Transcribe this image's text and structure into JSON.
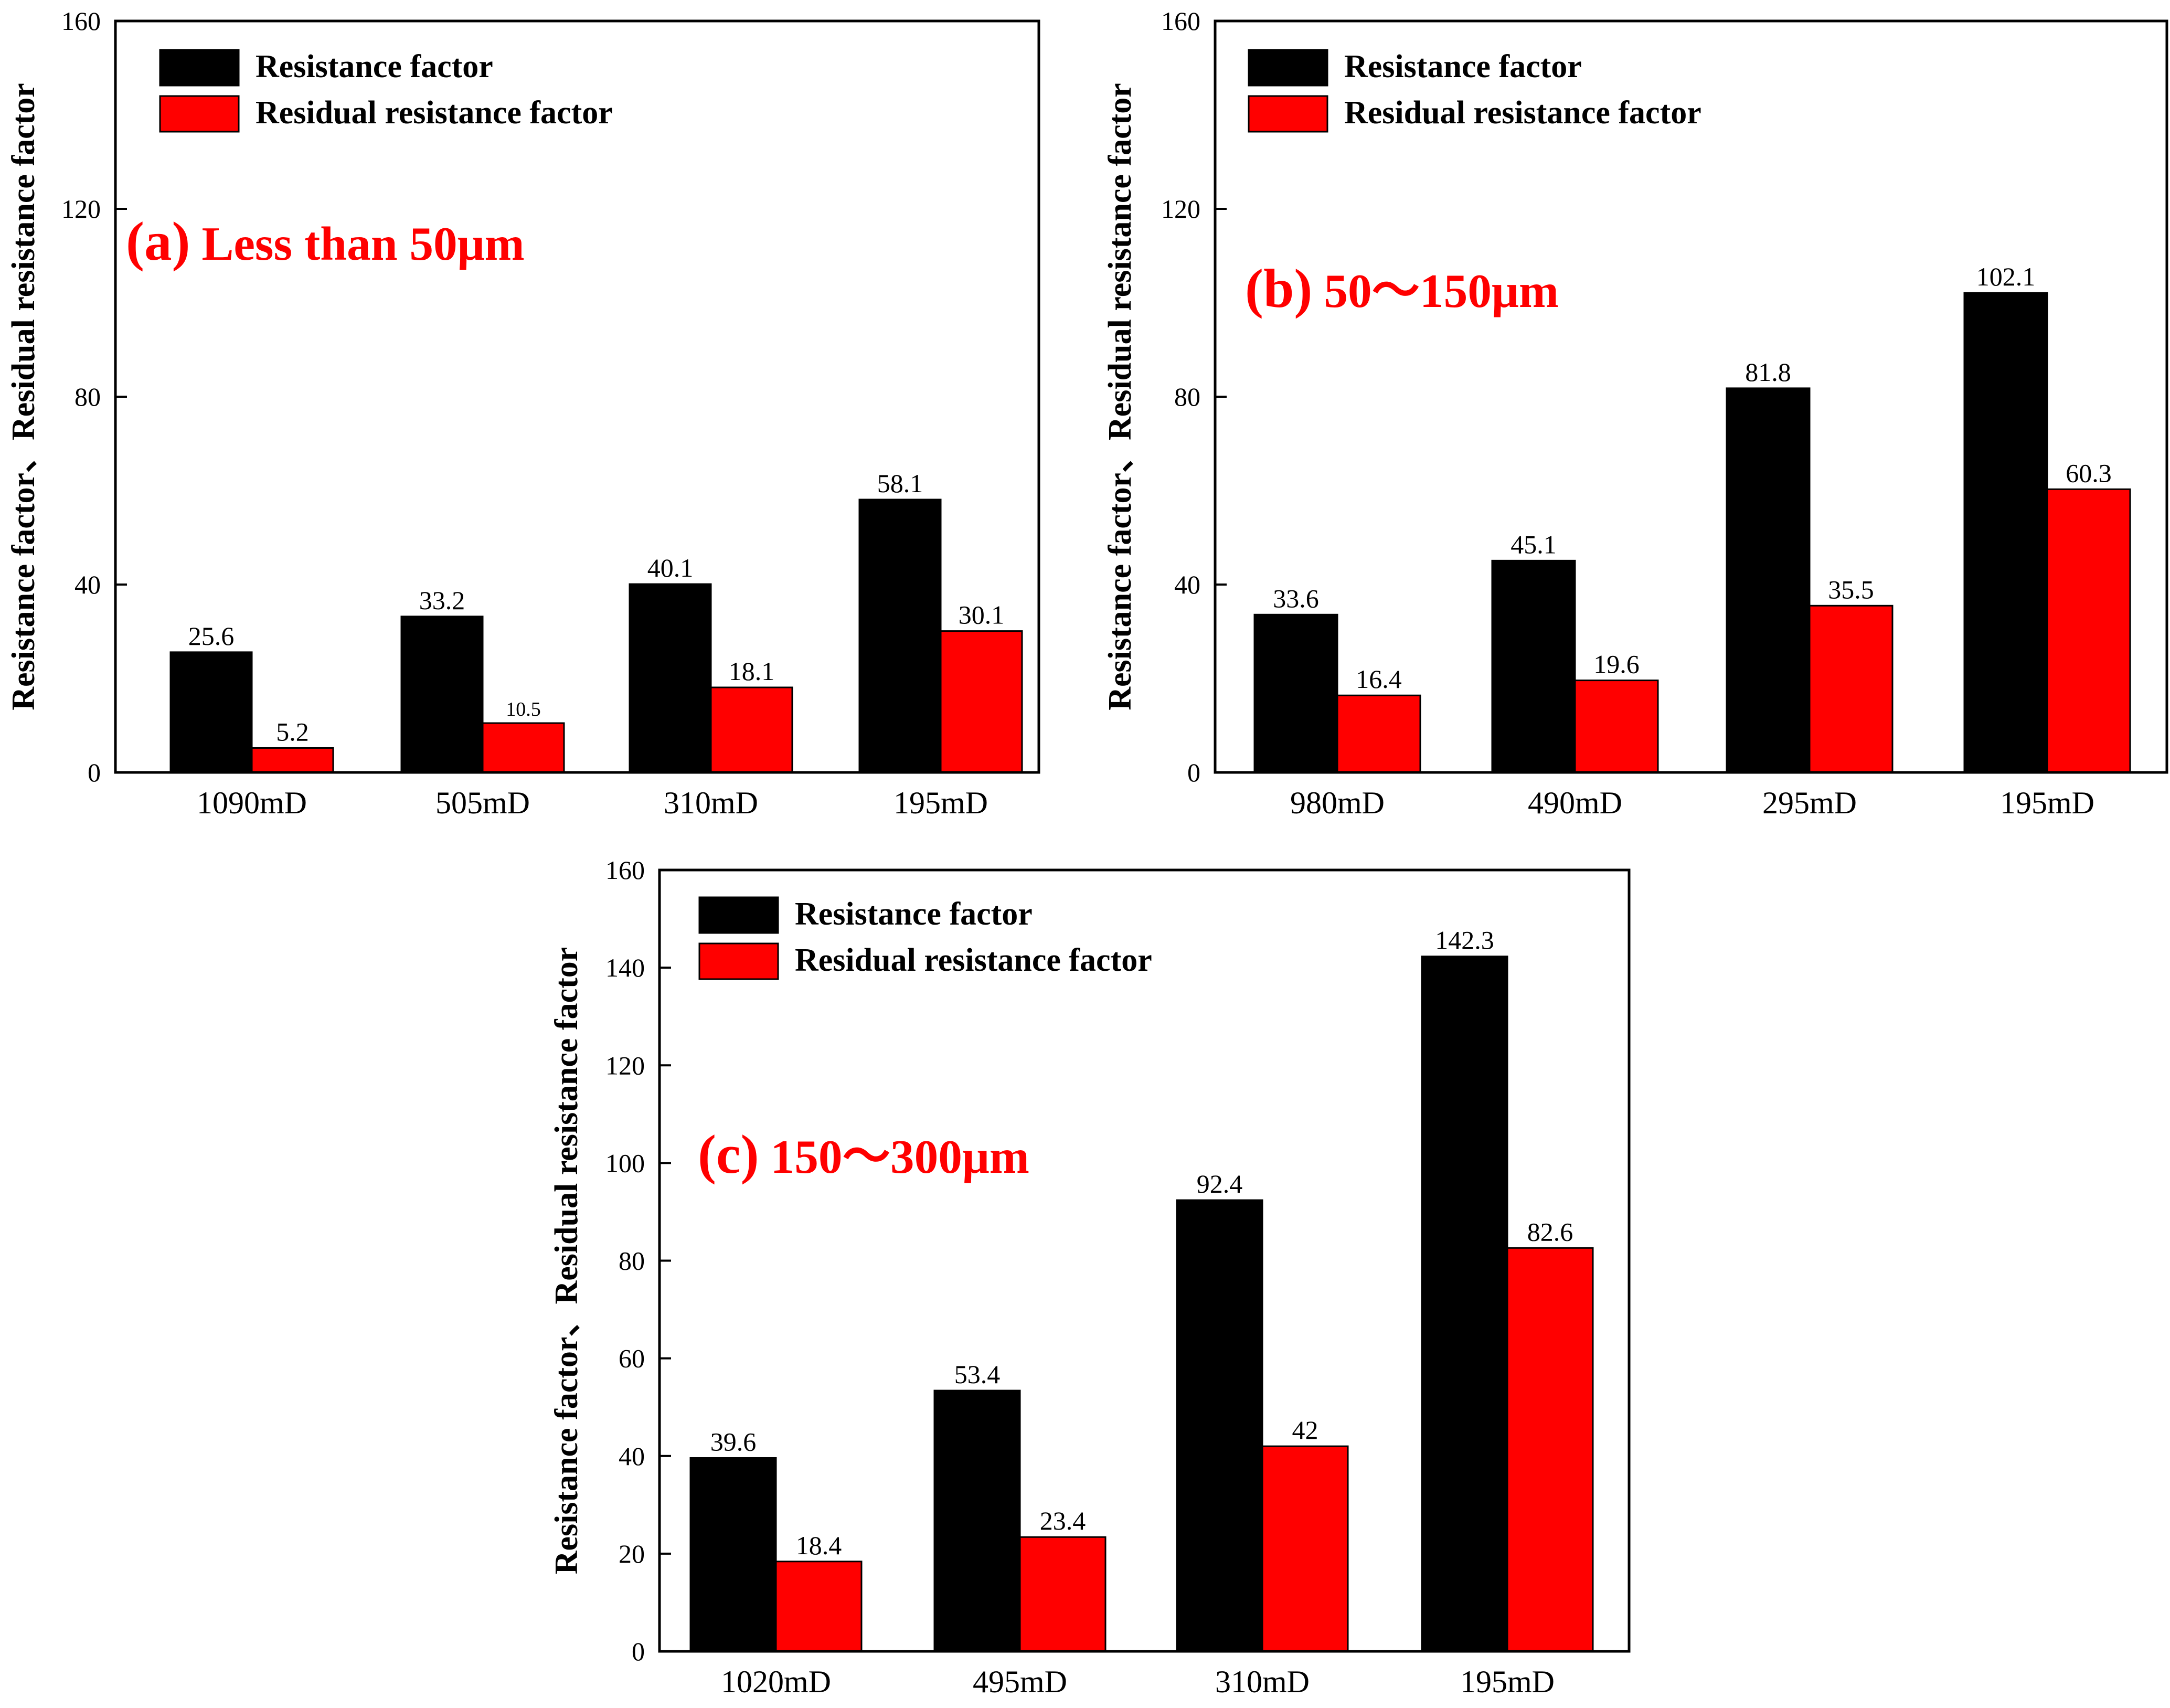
{
  "colors": {
    "series": [
      "#000000",
      "#ff0000"
    ],
    "panel_label": "#ff0000",
    "axis": "#000000"
  },
  "chart_data": [
    {
      "type": "bar",
      "panel": "a",
      "annotation": {
        "tag": "(a)",
        "text": "Less than 50μm"
      },
      "categories": [
        "1090mD",
        "505mD",
        "310mD",
        "195mD"
      ],
      "series": [
        {
          "name": "Resistance factor",
          "values": [
            25.6,
            33.2,
            40.1,
            58.1
          ],
          "labels": [
            "25.6",
            "33.2",
            "40.1",
            "58.1"
          ]
        },
        {
          "name": "Residual resistance factor",
          "values": [
            5.2,
            10.5,
            18.1,
            30.1
          ],
          "labels": [
            "5.2",
            "10.5",
            "18.1",
            "30.1"
          ]
        }
      ],
      "ylabel": "Resistance factor、Residual resistance factor",
      "xlabel": "",
      "ylim": [
        0,
        160
      ],
      "yticks": [
        0,
        40,
        80,
        120,
        160
      ],
      "legend": "top-left",
      "grid": false
    },
    {
      "type": "bar",
      "panel": "b",
      "annotation": {
        "tag": "(b)",
        "text": "50～150μm"
      },
      "categories": [
        "980mD",
        "490mD",
        "295mD",
        "195mD"
      ],
      "series": [
        {
          "name": "Resistance factor",
          "values": [
            33.6,
            45.1,
            81.8,
            102.1
          ],
          "labels": [
            "33.6",
            "45.1",
            "81.8",
            "102.1"
          ]
        },
        {
          "name": "Residual resistance factor",
          "values": [
            16.4,
            19.6,
            35.5,
            60.3
          ],
          "labels": [
            "16.4",
            "19.6",
            "35.5",
            "60.3"
          ]
        }
      ],
      "ylabel": "Resistance factor、Residual resistance factor",
      "xlabel": "",
      "ylim": [
        0,
        160
      ],
      "yticks": [
        0,
        40,
        80,
        120,
        160
      ],
      "legend": "top-left",
      "grid": false
    },
    {
      "type": "bar",
      "panel": "c",
      "annotation": {
        "tag": "(c)",
        "text": "150～300μm"
      },
      "categories": [
        "1020mD",
        "495mD",
        "310mD",
        "195mD"
      ],
      "series": [
        {
          "name": "Resistance factor",
          "values": [
            39.6,
            53.4,
            92.4,
            142.3
          ],
          "labels": [
            "39.6",
            "53.4",
            "92.4",
            "142.3"
          ]
        },
        {
          "name": "Residual resistance factor",
          "values": [
            18.4,
            23.4,
            42,
            82.6
          ],
          "labels": [
            "18.4",
            "23.4",
            "42",
            "82.6"
          ]
        }
      ],
      "ylabel": "Resistance factor、Residual resistance factor",
      "xlabel": "",
      "ylim": [
        0,
        160
      ],
      "yticks": [
        0,
        20,
        40,
        60,
        80,
        100,
        120,
        140,
        160
      ],
      "legend": "top-left",
      "grid": false
    }
  ]
}
